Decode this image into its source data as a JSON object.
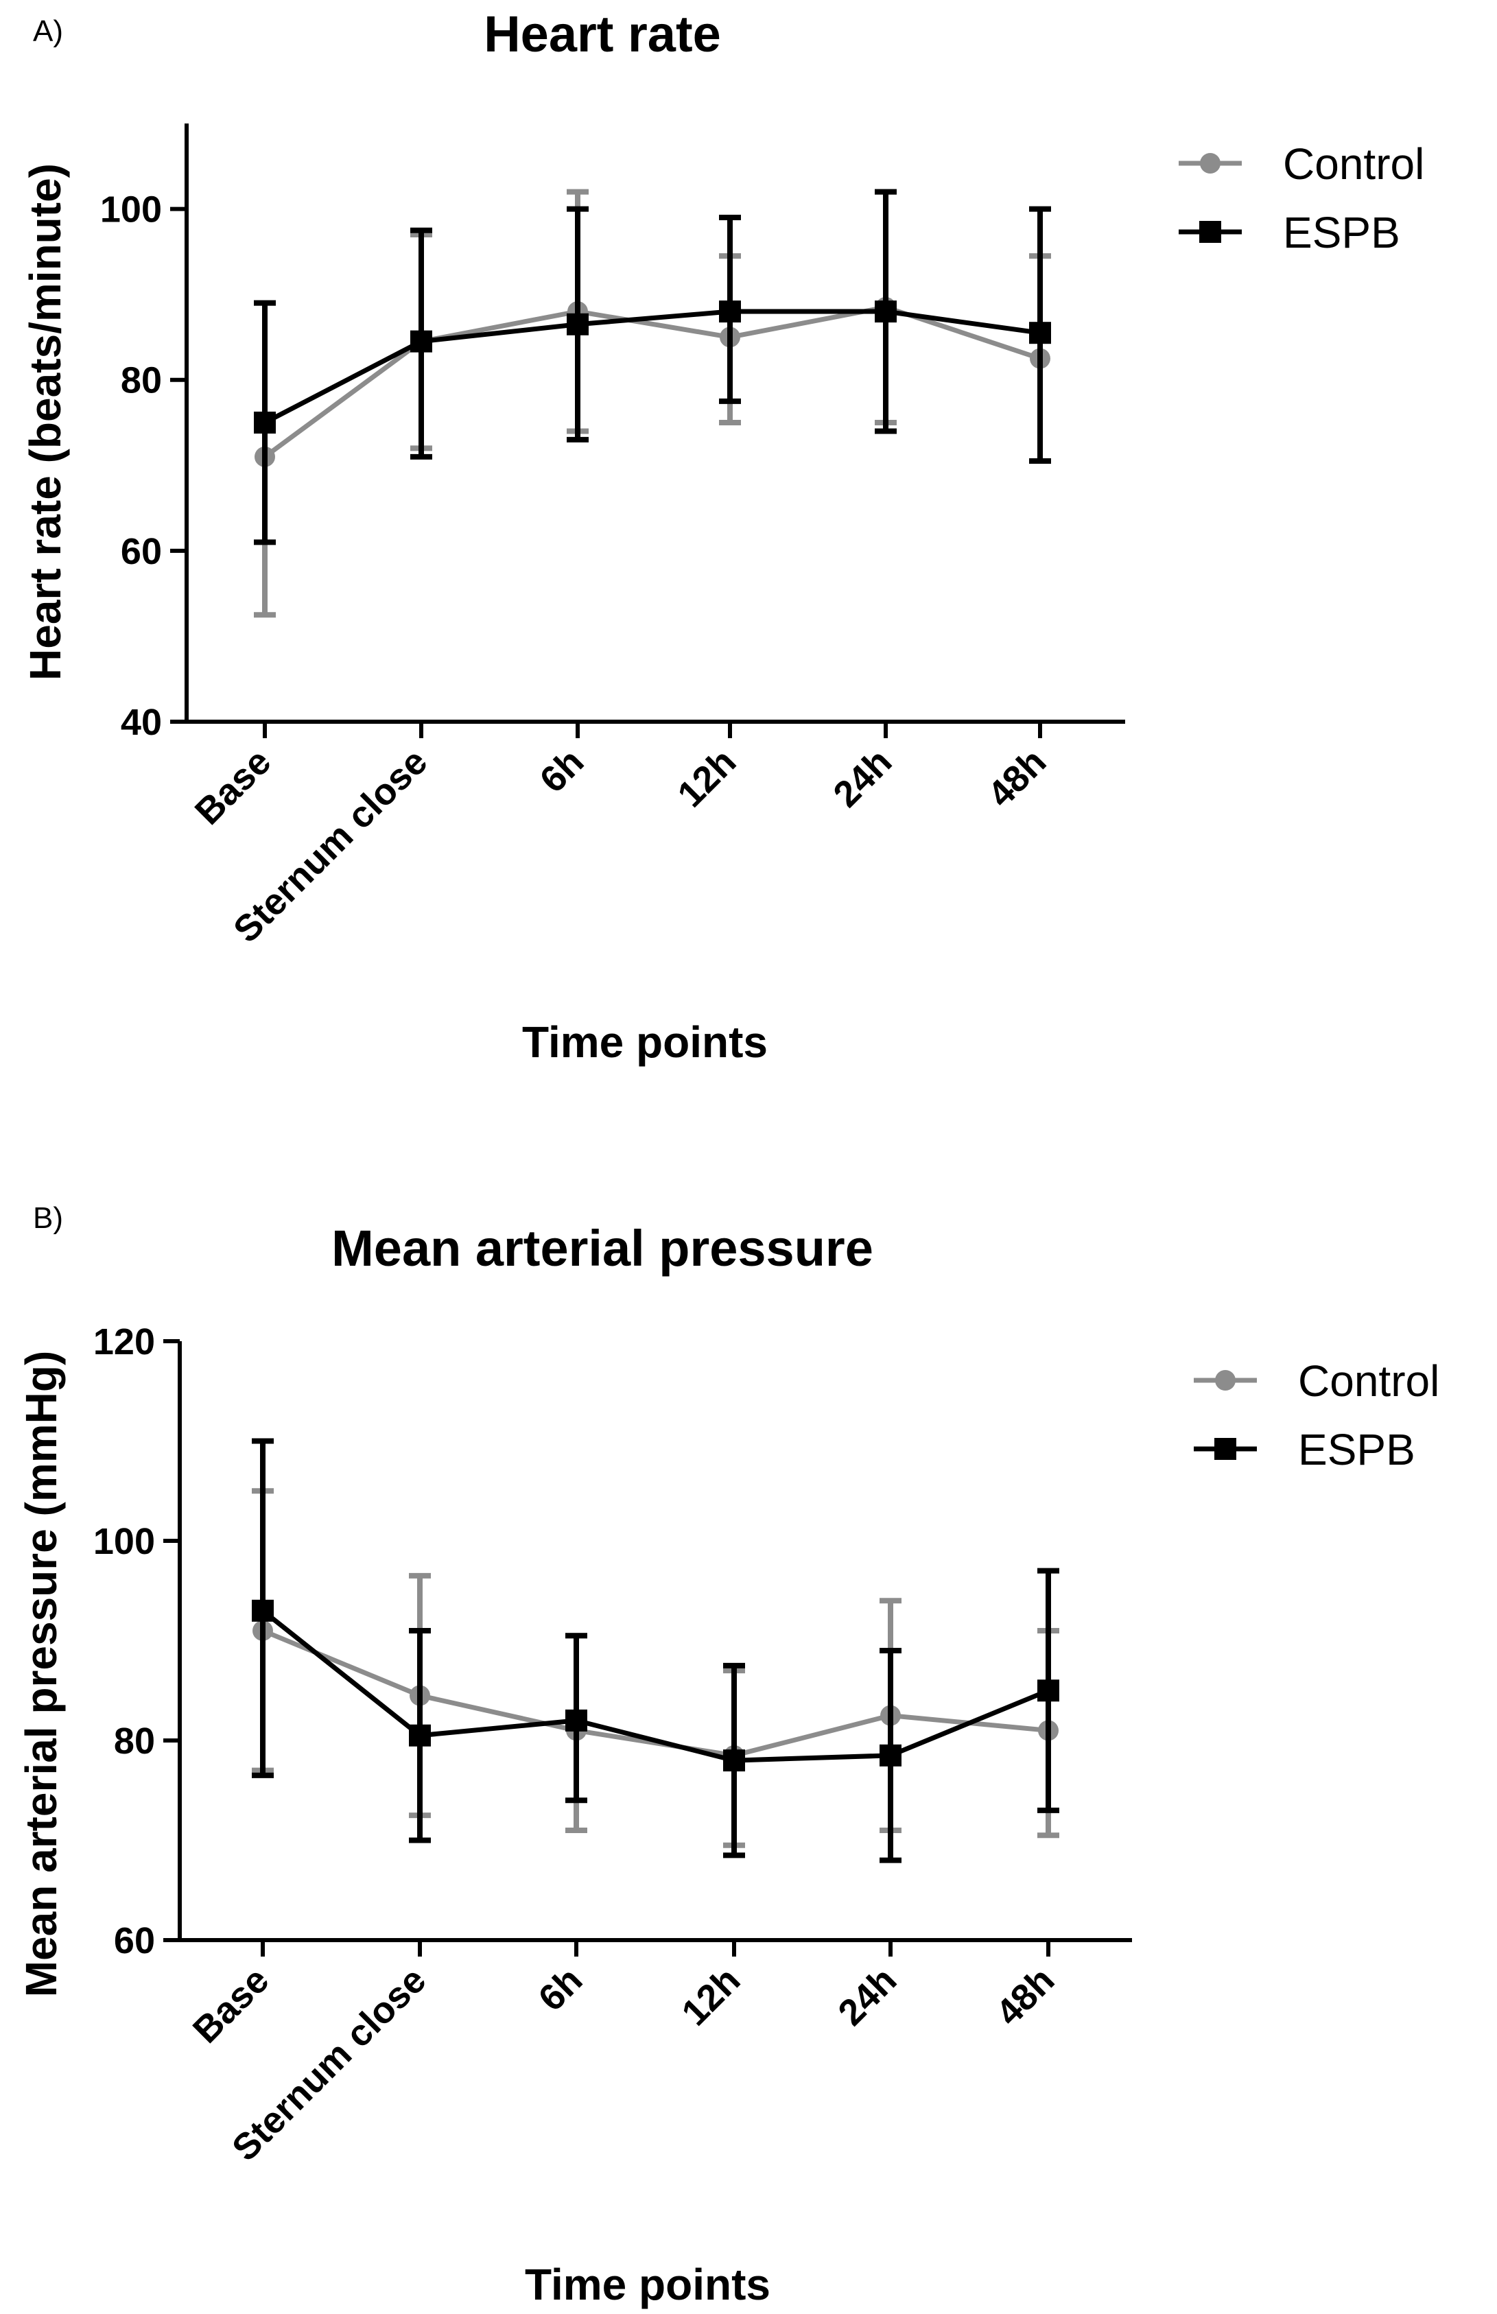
{
  "chart_data": [
    {
      "panel_label": "A)",
      "type": "line",
      "title": "Heart rate",
      "xlabel": "Time points",
      "ylabel": "Heart rate (beats/minute)",
      "categories": [
        "Base",
        "Sternum close",
        "6h",
        "12h",
        "24h",
        "48h"
      ],
      "ylim": [
        40,
        110
      ],
      "yticks": [
        40,
        60,
        80,
        100
      ],
      "grid": false,
      "legend_position": "top-right",
      "series": [
        {
          "name": "Control",
          "color": "#8c8c8c",
          "marker": "circle",
          "values": [
            71,
            84.5,
            88,
            85,
            88.5,
            82.5
          ],
          "error_low": [
            52.5,
            72,
            74,
            75,
            75,
            70.5
          ],
          "error_high": [
            89,
            97,
            102,
            94.5,
            102,
            94.5
          ]
        },
        {
          "name": "ESPB",
          "color": "#000000",
          "marker": "square",
          "values": [
            75,
            84.5,
            86.5,
            88,
            88,
            85.5
          ],
          "error_low": [
            61,
            71,
            73,
            77.5,
            74,
            70.5
          ],
          "error_high": [
            89,
            97.5,
            100,
            99,
            102,
            100
          ]
        }
      ]
    },
    {
      "panel_label": "B)",
      "type": "line",
      "title": "Mean arterial pressure",
      "xlabel": "Time points",
      "ylabel": "Mean arterial pressure (mmHg)",
      "categories": [
        "Base",
        "Sternum close",
        "6h",
        "12h",
        "24h",
        "48h"
      ],
      "ylim": [
        60,
        120
      ],
      "yticks": [
        60,
        80,
        100,
        120
      ],
      "grid": false,
      "legend_position": "top-right",
      "series": [
        {
          "name": "Control",
          "color": "#8c8c8c",
          "marker": "circle",
          "values": [
            91,
            84.5,
            81,
            78.5,
            82.5,
            81
          ],
          "error_low": [
            77,
            72.5,
            71,
            69.5,
            71,
            70.5
          ],
          "error_high": [
            105,
            96.5,
            90.5,
            87,
            94,
            91
          ]
        },
        {
          "name": "ESPB",
          "color": "#000000",
          "marker": "square",
          "values": [
            93,
            80.5,
            82,
            78,
            78.5,
            85
          ],
          "error_low": [
            76.5,
            70,
            74,
            68.5,
            68,
            73
          ],
          "error_high": [
            110,
            91,
            90.5,
            87.5,
            89,
            97
          ]
        }
      ]
    }
  ]
}
